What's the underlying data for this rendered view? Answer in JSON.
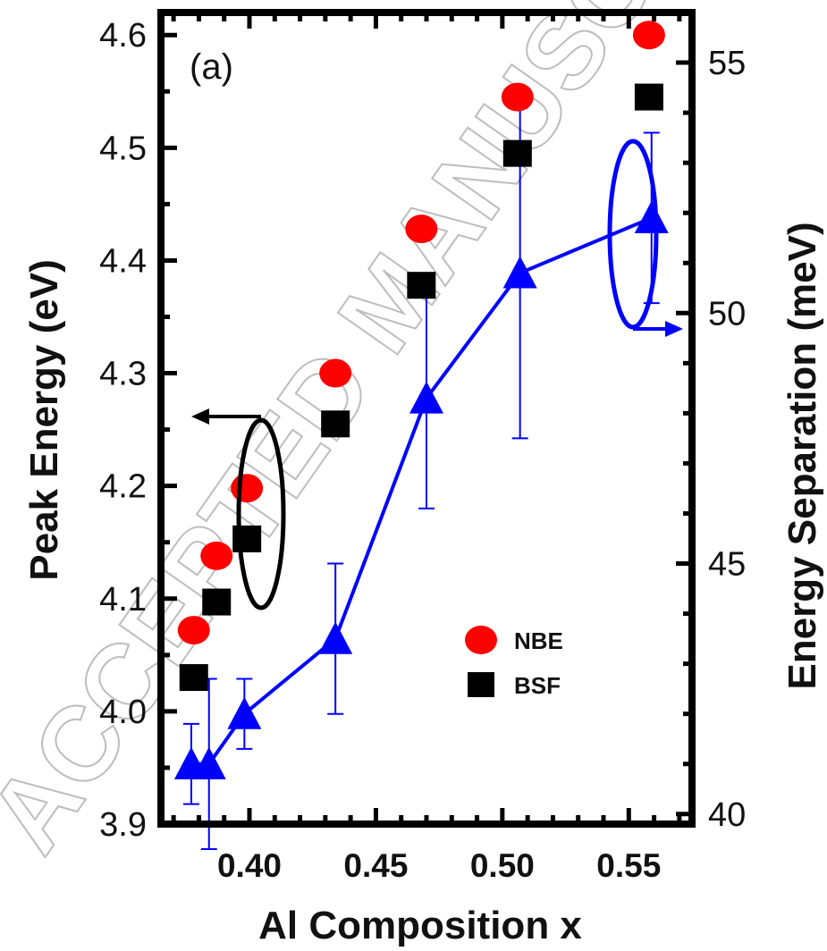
{
  "chart_data": {
    "type": "scatter",
    "panel_label": "(a)",
    "xlabel": "Al Composition x",
    "ylabel_left": "Peak Energy (eV)",
    "ylabel_right": "Energy Separation (meV)",
    "xlim": [
      0.365,
      0.575
    ],
    "ylim_left": [
      3.9,
      4.62
    ],
    "ylim_right": [
      39.8,
      56.0
    ],
    "x_ticks": [
      0.4,
      0.45,
      0.5,
      0.55
    ],
    "x_tick_labels": [
      "0.40",
      "0.45",
      "0.50",
      "0.55"
    ],
    "y_left_ticks": [
      3.9,
      4.0,
      4.1,
      4.2,
      4.3,
      4.4,
      4.5,
      4.6
    ],
    "y_left_tick_labels": [
      "3.9",
      "4.0",
      "4.1",
      "4.2",
      "4.3",
      "4.4",
      "4.5",
      "4.6"
    ],
    "y_right_ticks": [
      40,
      45,
      50,
      55
    ],
    "y_right_tick_labels": [
      "40",
      "45",
      "50",
      "55"
    ],
    "legend": {
      "position": "lower-right",
      "entries": [
        "NBE",
        "BSF"
      ]
    },
    "grid": false,
    "series": [
      {
        "name": "NBE",
        "axis": "left",
        "marker": "circle",
        "color": "#ff0000",
        "x": [
          0.378,
          0.387,
          0.399,
          0.434,
          0.468,
          0.506,
          0.558
        ],
        "y": [
          4.072,
          4.138,
          4.198,
          4.3,
          4.428,
          4.545,
          4.6
        ]
      },
      {
        "name": "BSF",
        "axis": "left",
        "marker": "square",
        "color": "#000000",
        "x": [
          0.378,
          0.387,
          0.399,
          0.434,
          0.468,
          0.506,
          0.558
        ],
        "y": [
          4.03,
          4.097,
          4.153,
          4.255,
          4.378,
          4.495,
          4.545
        ]
      },
      {
        "axis": "right",
        "marker": "triangle",
        "color": "#0000ff",
        "line": true,
        "x": [
          0.377,
          0.384,
          0.398,
          0.434,
          0.47,
          0.507,
          0.559
        ],
        "y": [
          41.0,
          41.0,
          42.0,
          43.5,
          48.3,
          50.8,
          51.9
        ],
        "err": [
          0.8,
          1.7,
          0.7,
          1.5,
          2.2,
          3.3,
          1.7
        ]
      }
    ],
    "annotations": [
      {
        "type": "axis-indicator",
        "target": "left",
        "color": "#000000"
      },
      {
        "type": "axis-indicator",
        "target": "right",
        "color": "#0000ff"
      }
    ],
    "watermark": "ACCEPTED MANUSCRIPT"
  }
}
